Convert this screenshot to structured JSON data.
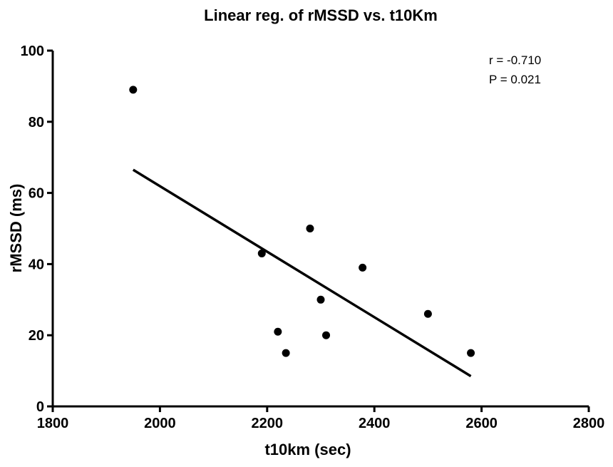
{
  "chart_data": {
    "type": "scatter",
    "title": "Linear reg. of rMSSD vs. t10Km",
    "xlabel": "t10km (sec)",
    "ylabel": "rMSSD (ms)",
    "xlim": [
      1800,
      2800
    ],
    "ylim": [
      0,
      100
    ],
    "xticks": [
      1800,
      2000,
      2200,
      2400,
      2600,
      2800
    ],
    "yticks": [
      0,
      20,
      40,
      60,
      80,
      100
    ],
    "grid": false,
    "points": [
      {
        "x": 1950,
        "y": 89
      },
      {
        "x": 2190,
        "y": 43
      },
      {
        "x": 2220,
        "y": 21
      },
      {
        "x": 2235,
        "y": 15
      },
      {
        "x": 2280,
        "y": 50
      },
      {
        "x": 2300,
        "y": 30
      },
      {
        "x": 2310,
        "y": 20
      },
      {
        "x": 2378,
        "y": 39
      },
      {
        "x": 2500,
        "y": 26
      },
      {
        "x": 2580,
        "y": 15
      }
    ],
    "regression_line": {
      "x": [
        1950,
        2580
      ],
      "y": [
        66.5,
        8.5
      ]
    },
    "annotations": [
      "r = -0.710",
      "P = 0.021"
    ]
  }
}
